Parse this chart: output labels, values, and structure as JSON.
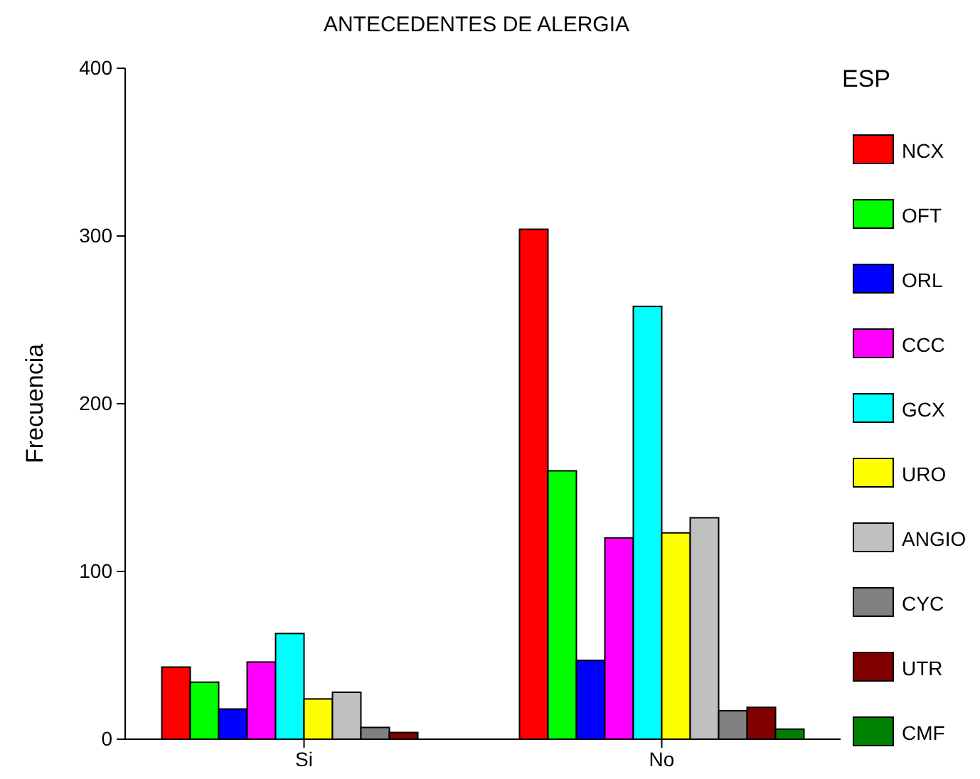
{
  "chart_data": {
    "type": "bar",
    "title": "ANTECEDENTES DE ALERGIA",
    "ylabel": "Frecuencia",
    "legend_title": "ESP",
    "categories": [
      "Si",
      "No"
    ],
    "series": [
      {
        "name": "NCX",
        "color": "#ff0000",
        "values": [
          43,
          304
        ]
      },
      {
        "name": "OFT",
        "color": "#00ff00",
        "values": [
          34,
          160
        ]
      },
      {
        "name": "ORL",
        "color": "#0000ff",
        "values": [
          18,
          47
        ]
      },
      {
        "name": "CCC",
        "color": "#ff00ff",
        "values": [
          46,
          120
        ]
      },
      {
        "name": "GCX",
        "color": "#00ffff",
        "values": [
          63,
          258
        ]
      },
      {
        "name": "URO",
        "color": "#ffff00",
        "values": [
          24,
          123
        ]
      },
      {
        "name": "ANGIO",
        "color": "#c0c0c0",
        "values": [
          28,
          132
        ]
      },
      {
        "name": "CYC",
        "color": "#808080",
        "values": [
          7,
          17
        ]
      },
      {
        "name": "UTR",
        "color": "#800000",
        "values": [
          4,
          19
        ]
      },
      {
        "name": "CMF",
        "color": "#008000",
        "values": [
          0,
          6
        ]
      }
    ],
    "ylim": [
      0,
      400
    ],
    "yticks": [
      0,
      100,
      200,
      300,
      400
    ],
    "grid": false,
    "legend": "right"
  }
}
